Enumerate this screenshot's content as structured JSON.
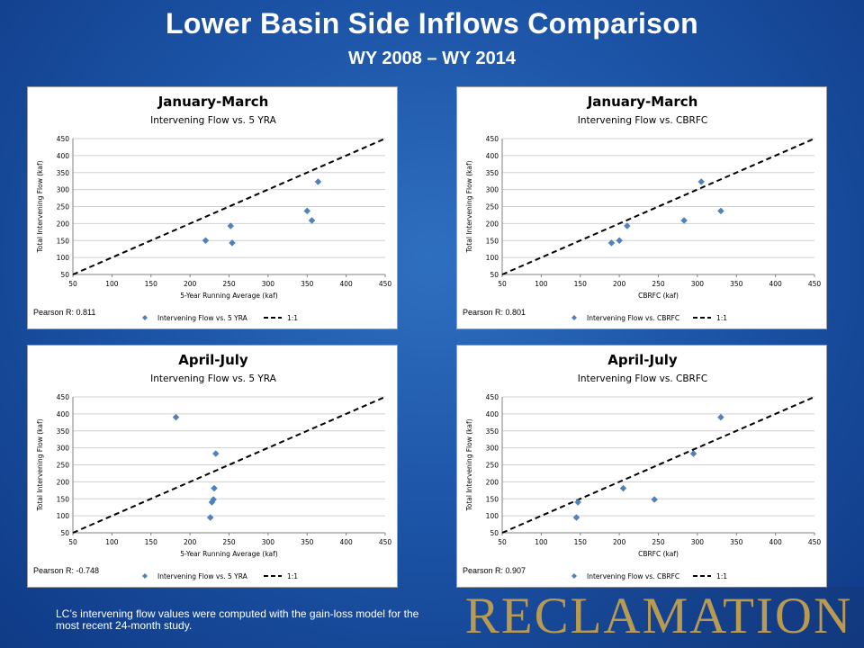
{
  "slide": {
    "title": "Lower Basin Side Inflows Comparison",
    "subtitle": "WY 2008 – WY 2014",
    "footnote": "LC’s intervening flow values were computed with the gain-loss model for the most recent 24-month study.",
    "logo": "RECLAMATION"
  },
  "colors": {
    "marker": "#4f81bd",
    "line": "#000000",
    "logo": "#b89a52"
  },
  "chart_data": [
    {
      "type": "scatter",
      "title": "January-March",
      "subtitle": "Intervening Flow vs. 5 YRA",
      "xlabel": "5-Year Running Average (kaf)",
      "ylabel": "Total Intervening Flow (kaf)",
      "xlim": [
        50,
        450
      ],
      "ylim": [
        50,
        450
      ],
      "xticks": [
        50,
        100,
        150,
        200,
        250,
        300,
        350,
        400,
        450
      ],
      "yticks": [
        50,
        100,
        150,
        200,
        250,
        300,
        350,
        400,
        450
      ],
      "series": [
        {
          "name": "Intervening Flow vs. 5 YRA",
          "x": [
            220,
            252,
            254,
            350,
            356,
            364
          ],
          "y": [
            150,
            193,
            143,
            237,
            209,
            323
          ]
        },
        {
          "name": "1:1",
          "x": [
            50,
            450
          ],
          "y": [
            50,
            450
          ]
        }
      ],
      "pearson": "Pearson R: 0.811",
      "grid": true,
      "legend": "bottom"
    },
    {
      "type": "scatter",
      "title": "January-March",
      "subtitle": "Intervening Flow vs. CBRFC",
      "xlabel": "CBRFC (kaf)",
      "ylabel": "Total Intervening Flow (kaf)",
      "xlim": [
        50,
        450
      ],
      "ylim": [
        50,
        450
      ],
      "xticks": [
        50,
        100,
        150,
        200,
        250,
        300,
        350,
        400,
        450
      ],
      "yticks": [
        50,
        100,
        150,
        200,
        250,
        300,
        350,
        400,
        450
      ],
      "series": [
        {
          "name": "Intervening Flow vs. CBRFC",
          "x": [
            190,
            200,
            210,
            283,
            305,
            330
          ],
          "y": [
            143,
            150,
            193,
            209,
            323,
            237
          ]
        },
        {
          "name": "1:1",
          "x": [
            50,
            450
          ],
          "y": [
            50,
            450
          ]
        }
      ],
      "pearson": "Pearson R: 0.801",
      "grid": true,
      "legend": "bottom"
    },
    {
      "type": "scatter",
      "title": "April-July",
      "subtitle": "Intervening Flow vs. 5 YRA",
      "xlabel": "5-Year Running Average (kaf)",
      "ylabel": "Total Intervening Flow (kaf)",
      "xlim": [
        50,
        450
      ],
      "ylim": [
        50,
        450
      ],
      "xticks": [
        50,
        100,
        150,
        200,
        250,
        300,
        350,
        400,
        450
      ],
      "yticks": [
        50,
        100,
        150,
        200,
        250,
        300,
        350,
        400,
        450
      ],
      "series": [
        {
          "name": "Intervening Flow vs. 5 YRA",
          "x": [
            182,
            226,
            228,
            230,
            231,
            233
          ],
          "y": [
            390,
            95,
            140,
            148,
            181,
            283
          ]
        },
        {
          "name": "1:1",
          "x": [
            50,
            450
          ],
          "y": [
            50,
            450
          ]
        }
      ],
      "pearson": "Pearson R: -0.748",
      "grid": true,
      "legend": "bottom"
    },
    {
      "type": "scatter",
      "title": "April-July",
      "subtitle": "Intervening Flow vs. CBRFC",
      "xlabel": "CBRFC (kaf)",
      "ylabel": "Total Intervening Flow (kaf)",
      "xlim": [
        50,
        450
      ],
      "ylim": [
        50,
        450
      ],
      "xticks": [
        50,
        100,
        150,
        200,
        250,
        300,
        350,
        400,
        450
      ],
      "yticks": [
        50,
        100,
        150,
        200,
        250,
        300,
        350,
        400,
        450
      ],
      "series": [
        {
          "name": "Intervening Flow vs. CBRFC",
          "x": [
            145,
            147,
            205,
            245,
            295,
            330
          ],
          "y": [
            95,
            140,
            181,
            148,
            283,
            390
          ]
        },
        {
          "name": "1:1",
          "x": [
            50,
            450
          ],
          "y": [
            50,
            450
          ]
        }
      ],
      "pearson": "Pearson R: 0.907",
      "grid": true,
      "legend": "bottom"
    }
  ]
}
